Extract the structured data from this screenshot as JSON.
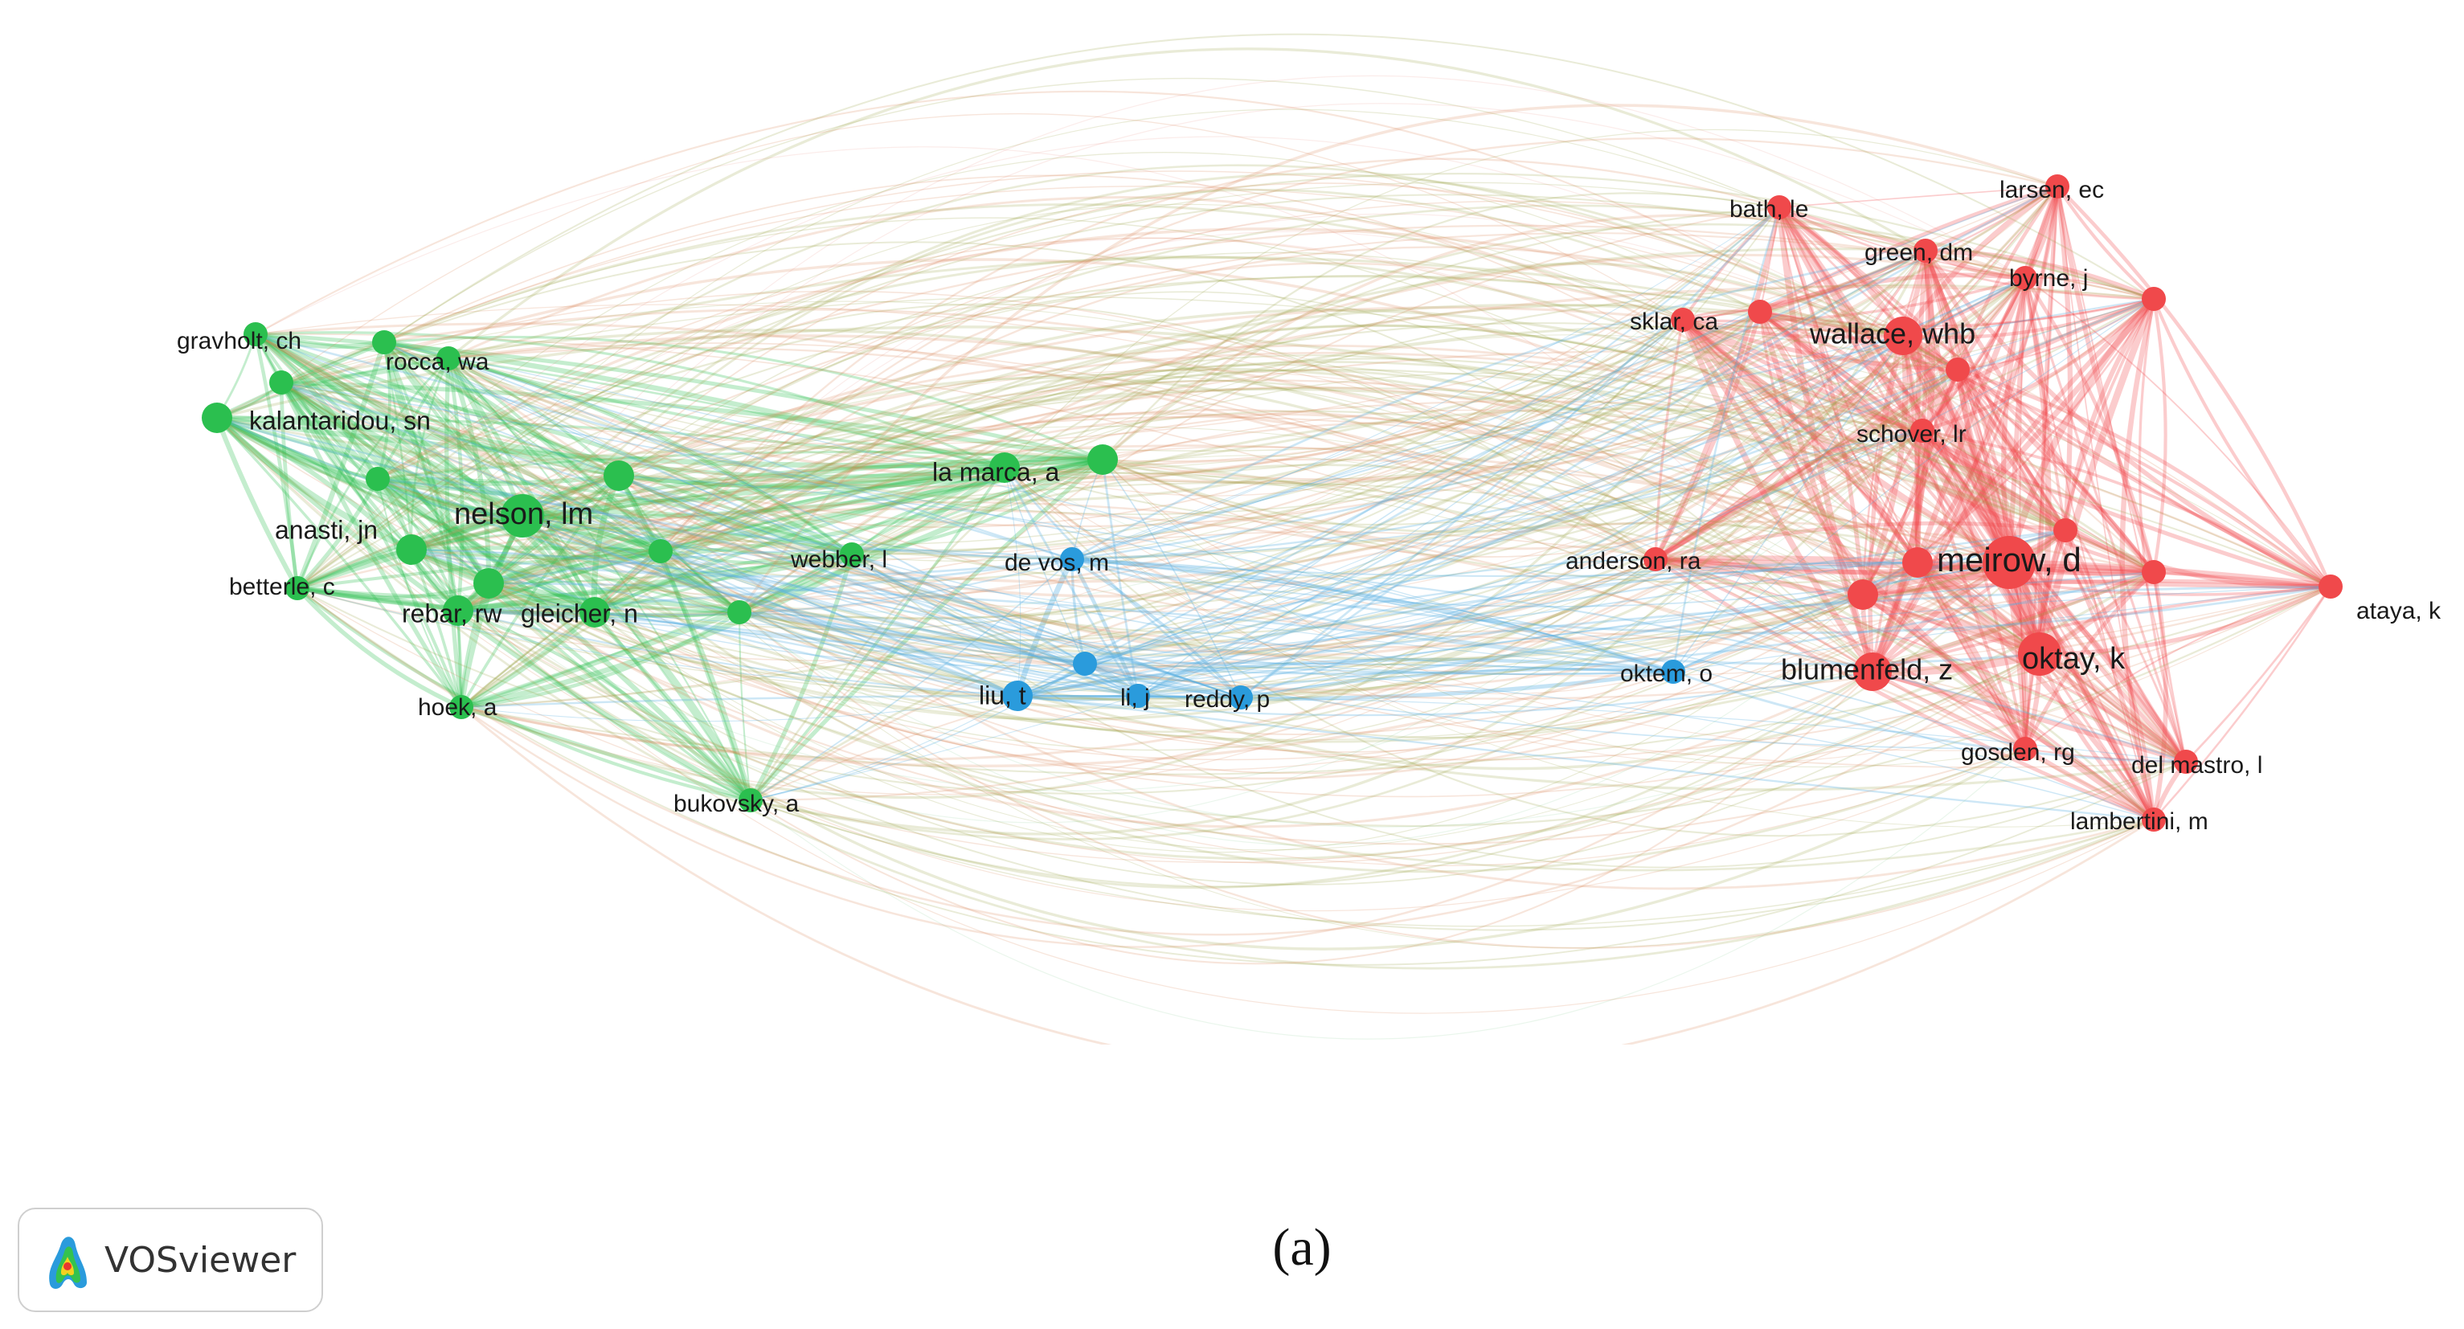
{
  "caption": "(a)",
  "badge": {
    "label": "VOSviewer",
    "icon": "vosviewer-logo-icon"
  },
  "clusters": {
    "green": "#2bbf4f",
    "blue": "#2a9bdc",
    "red": "#f0494b"
  },
  "nodes": [
    {
      "id": "gravholt",
      "label": "gravholt, ch",
      "cluster": "green",
      "weight": 3
    },
    {
      "id": "rocca",
      "label": "rocca, wa",
      "cluster": "green",
      "weight": 3
    },
    {
      "id": "kalantaridou",
      "label": "kalantaridou, sn",
      "cluster": "green",
      "weight": 4
    },
    {
      "id": "nelson",
      "label": "nelson, lm",
      "cluster": "green",
      "weight": 6
    },
    {
      "id": "anasti",
      "label": "anasti, jn",
      "cluster": "green",
      "weight": 4
    },
    {
      "id": "betterle",
      "label": "betterle, c",
      "cluster": "green",
      "weight": 3
    },
    {
      "id": "rebar",
      "label": "rebar, rw",
      "cluster": "green",
      "weight": 4
    },
    {
      "id": "gleicher",
      "label": "gleicher, n",
      "cluster": "green",
      "weight": 4
    },
    {
      "id": "hoek",
      "label": "hoek, a",
      "cluster": "green",
      "weight": 3
    },
    {
      "id": "bukovsky",
      "label": "bukovsky, a",
      "cluster": "green",
      "weight": 3
    },
    {
      "id": "webber",
      "label": "webber, l",
      "cluster": "green",
      "weight": 3
    },
    {
      "id": "lamarca",
      "label": "la marca, a",
      "cluster": "green",
      "weight": 4
    },
    {
      "id": "g1",
      "label": "",
      "cluster": "green",
      "weight": 3
    },
    {
      "id": "g2",
      "label": "",
      "cluster": "green",
      "weight": 3
    },
    {
      "id": "g3",
      "label": "",
      "cluster": "green",
      "weight": 3
    },
    {
      "id": "g4",
      "label": "",
      "cluster": "green",
      "weight": 3
    },
    {
      "id": "g5",
      "label": "",
      "cluster": "green",
      "weight": 3
    },
    {
      "id": "g6",
      "label": "",
      "cluster": "green",
      "weight": 4
    },
    {
      "id": "g7",
      "label": "",
      "cluster": "green",
      "weight": 4
    },
    {
      "id": "g8",
      "label": "",
      "cluster": "green",
      "weight": 4
    },
    {
      "id": "devos",
      "label": "de vos, m",
      "cluster": "blue",
      "weight": 3
    },
    {
      "id": "liu",
      "label": "liu, t",
      "cluster": "blue",
      "weight": 4
    },
    {
      "id": "lij",
      "label": "li, j",
      "cluster": "blue",
      "weight": 3
    },
    {
      "id": "reddy",
      "label": "reddy, p",
      "cluster": "blue",
      "weight": 3
    },
    {
      "id": "oktem",
      "label": "oktem, o",
      "cluster": "blue",
      "weight": 3
    },
    {
      "id": "b1",
      "label": "",
      "cluster": "blue",
      "weight": 3
    },
    {
      "id": "bath",
      "label": "bath, le",
      "cluster": "red",
      "weight": 3
    },
    {
      "id": "larsen",
      "label": "larsen, ec",
      "cluster": "red",
      "weight": 3
    },
    {
      "id": "green",
      "label": "green, dm",
      "cluster": "red",
      "weight": 3
    },
    {
      "id": "byrne",
      "label": "byrne, j",
      "cluster": "red",
      "weight": 3
    },
    {
      "id": "sklar",
      "label": "sklar, ca",
      "cluster": "red",
      "weight": 3
    },
    {
      "id": "wallace",
      "label": "wallace, whb",
      "cluster": "red",
      "weight": 5
    },
    {
      "id": "schover",
      "label": "schover, lr",
      "cluster": "red",
      "weight": 3
    },
    {
      "id": "anderson",
      "label": "anderson, ra",
      "cluster": "red",
      "weight": 3
    },
    {
      "id": "meirow",
      "label": "meirow, d",
      "cluster": "red",
      "weight": 7
    },
    {
      "id": "blumenfeld",
      "label": "blumenfeld, z",
      "cluster": "red",
      "weight": 5
    },
    {
      "id": "oktay",
      "label": "oktay, k",
      "cluster": "red",
      "weight": 6
    },
    {
      "id": "ataya",
      "label": "ataya, k",
      "cluster": "red",
      "weight": 3
    },
    {
      "id": "gosden",
      "label": "gosden, rg",
      "cluster": "red",
      "weight": 3
    },
    {
      "id": "delmastro",
      "label": "del mastro, l",
      "cluster": "red",
      "weight": 3
    },
    {
      "id": "lambertini",
      "label": "lambertini, m",
      "cluster": "red",
      "weight": 3
    },
    {
      "id": "r1",
      "label": "",
      "cluster": "red",
      "weight": 3
    },
    {
      "id": "r2",
      "label": "",
      "cluster": "red",
      "weight": 3
    },
    {
      "id": "r3",
      "label": "",
      "cluster": "red",
      "weight": 3
    },
    {
      "id": "r4",
      "label": "",
      "cluster": "red",
      "weight": 4
    },
    {
      "id": "r5",
      "label": "",
      "cluster": "red",
      "weight": 4
    },
    {
      "id": "r6",
      "label": "",
      "cluster": "red",
      "weight": 3
    },
    {
      "id": "r7",
      "label": "",
      "cluster": "red",
      "weight": 3
    }
  ]
}
